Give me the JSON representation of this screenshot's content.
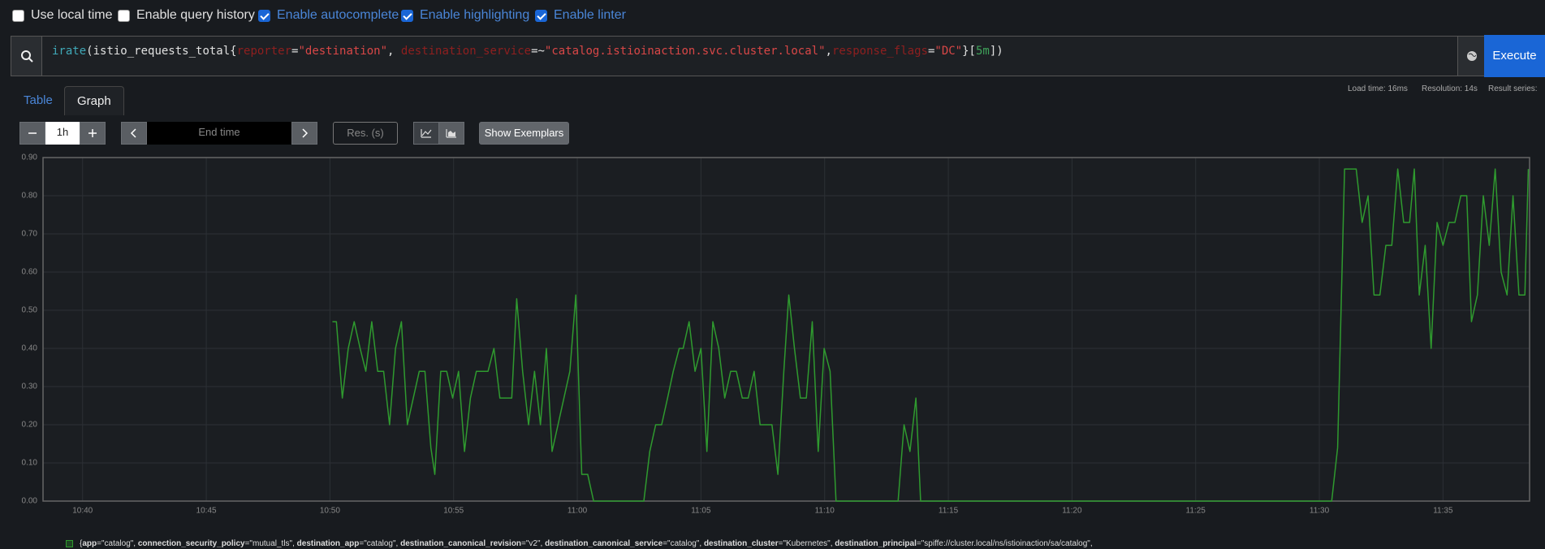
{
  "settings": [
    {
      "label": "Use local time",
      "checked": false
    },
    {
      "label": "Enable query history",
      "checked": false
    },
    {
      "label": "Enable autocomplete",
      "checked": true
    },
    {
      "label": "Enable highlighting",
      "checked": true
    },
    {
      "label": "Enable linter",
      "checked": true
    }
  ],
  "query": {
    "tokens": [
      {
        "text": "irate",
        "kind": "fn"
      },
      {
        "text": "(istio_requests_total{",
        "kind": "plain"
      },
      {
        "text": "reporter",
        "kind": "label"
      },
      {
        "text": "=",
        "kind": "plain"
      },
      {
        "text": "\"destination\"",
        "kind": "string"
      },
      {
        "text": ", ",
        "kind": "plain"
      },
      {
        "text": "destination_service",
        "kind": "label"
      },
      {
        "text": "=~",
        "kind": "plain"
      },
      {
        "text": "\"catalog.istioinaction.svc.cluster.local\"",
        "kind": "string"
      },
      {
        "text": ",",
        "kind": "plain"
      },
      {
        "text": "response_flags",
        "kind": "label"
      },
      {
        "text": "=",
        "kind": "plain"
      },
      {
        "text": "\"DC\"",
        "kind": "string"
      },
      {
        "text": "}[",
        "kind": "plain"
      },
      {
        "text": "5m",
        "kind": "duration"
      },
      {
        "text": "])",
        "kind": "plain"
      }
    ],
    "execute_button": "Execute"
  },
  "tabs": [
    {
      "label": "Table",
      "active": false
    },
    {
      "label": "Graph",
      "active": true
    }
  ],
  "stats": [
    "Load time: 16ms",
    "Resolution: 14s",
    "Result series:"
  ],
  "controls": {
    "range": "1h",
    "end_time_placeholder": "End time",
    "resolution_placeholder": "Res. (s)",
    "exemplars_button": "Show Exemplars"
  },
  "chart_data": {
    "type": "line",
    "grid": true,
    "xlim": [
      638.4,
      698.5
    ],
    "ylim": [
      0,
      0.9
    ],
    "xticks": [
      {
        "value": 640,
        "label": "10:40"
      },
      {
        "value": 645,
        "label": "10:45"
      },
      {
        "value": 650,
        "label": "10:50"
      },
      {
        "value": 655,
        "label": "10:55"
      },
      {
        "value": 660,
        "label": "11:00"
      },
      {
        "value": 665,
        "label": "11:05"
      },
      {
        "value": 670,
        "label": "11:10"
      },
      {
        "value": 675,
        "label": "11:15"
      },
      {
        "value": 680,
        "label": "11:20"
      },
      {
        "value": 685,
        "label": "11:25"
      },
      {
        "value": 690,
        "label": "11:30"
      },
      {
        "value": 695,
        "label": "11:35"
      }
    ],
    "yticks": [
      {
        "value": 0,
        "label": "0.00"
      },
      {
        "value": 0.1,
        "label": "0.10"
      },
      {
        "value": 0.2,
        "label": "0.20"
      },
      {
        "value": 0.3,
        "label": "0.30"
      },
      {
        "value": 0.4,
        "label": "0.40"
      },
      {
        "value": 0.5,
        "label": "0.50"
      },
      {
        "value": 0.6,
        "label": "0.60"
      },
      {
        "value": 0.7,
        "label": "0.70"
      },
      {
        "value": 0.8,
        "label": "0.80"
      },
      {
        "value": 0.9,
        "label": "0.90"
      }
    ],
    "series": [
      {
        "color": "#2f9a2f",
        "x": [
          650.1,
          650.26,
          650.5,
          650.74,
          650.98,
          651.22,
          651.45,
          651.69,
          651.93,
          652.17,
          652.41,
          652.65,
          652.89,
          653.13,
          653.37,
          653.61,
          653.84,
          654.08,
          654.24,
          654.48,
          654.72,
          654.96,
          655.2,
          655.44,
          655.68,
          655.92,
          656.16,
          656.39,
          656.63,
          656.87,
          657.11,
          657.35,
          657.55,
          657.79,
          658.03,
          658.27,
          658.51,
          658.75,
          658.98,
          659.22,
          659.46,
          659.7,
          659.94,
          660.18,
          660.42,
          660.66,
          662.69,
          662.93,
          663.17,
          663.41,
          663.65,
          663.88,
          664.12,
          664.28,
          664.52,
          664.76,
          665.0,
          665.24,
          665.48,
          665.72,
          665.96,
          666.2,
          666.43,
          666.67,
          666.91,
          667.15,
          667.39,
          667.63,
          667.87,
          668.11,
          668.35,
          668.55,
          668.78,
          669.02,
          669.26,
          669.5,
          669.74,
          669.98,
          670.22,
          670.46,
          672.97,
          673.21,
          673.45,
          673.69,
          673.88,
          690.5,
          690.74,
          691.02,
          691.25,
          691.49,
          691.73,
          691.97,
          692.21,
          692.45,
          692.69,
          692.93,
          693.17,
          693.41,
          693.65,
          693.84,
          694.04,
          694.28,
          694.52,
          694.76,
          695.0,
          695.24,
          695.48,
          695.72,
          695.96,
          696.15,
          696.39,
          696.63,
          696.87,
          697.11,
          697.35,
          697.59,
          697.83,
          698.07,
          698.31,
          698.45
        ],
        "values": [
          0.47,
          0.47,
          0.27,
          0.4,
          0.47,
          0.4,
          0.34,
          0.47,
          0.34,
          0.34,
          0.2,
          0.4,
          0.47,
          0.2,
          0.27,
          0.34,
          0.34,
          0.14,
          0.07,
          0.34,
          0.34,
          0.27,
          0.34,
          0.13,
          0.27,
          0.34,
          0.34,
          0.34,
          0.4,
          0.27,
          0.27,
          0.27,
          0.53,
          0.34,
          0.2,
          0.34,
          0.2,
          0.4,
          0.13,
          0.2,
          0.27,
          0.34,
          0.54,
          0.07,
          0.07,
          0,
          0,
          0.13,
          0.2,
          0.2,
          0.27,
          0.34,
          0.4,
          0.4,
          0.47,
          0.34,
          0.4,
          0.13,
          0.47,
          0.4,
          0.27,
          0.34,
          0.34,
          0.27,
          0.27,
          0.34,
          0.2,
          0.2,
          0.2,
          0.07,
          0.34,
          0.54,
          0.4,
          0.27,
          0.27,
          0.47,
          0.13,
          0.4,
          0.34,
          0,
          0,
          0.2,
          0.13,
          0.27,
          0,
          0,
          0.14,
          0.87,
          0.87,
          0.87,
          0.73,
          0.8,
          0.54,
          0.54,
          0.67,
          0.67,
          0.87,
          0.73,
          0.73,
          0.87,
          0.54,
          0.67,
          0.4,
          0.73,
          0.67,
          0.73,
          0.73,
          0.8,
          0.8,
          0.47,
          0.54,
          0.8,
          0.67,
          0.87,
          0.6,
          0.54,
          0.8,
          0.54,
          0.54,
          0.87
        ]
      }
    ],
    "legend": [
      {
        "text": "{",
        "bold": false
      },
      {
        "text": "app",
        "bold": true
      },
      {
        "text": "=\"catalog\", ",
        "bold": false
      },
      {
        "text": "connection_security_policy",
        "bold": true
      },
      {
        "text": "=\"mutual_tls\", ",
        "bold": false
      },
      {
        "text": "destination_app",
        "bold": true
      },
      {
        "text": "=\"catalog\", ",
        "bold": false
      },
      {
        "text": "destination_canonical_revision",
        "bold": true
      },
      {
        "text": "=\"v2\", ",
        "bold": false
      },
      {
        "text": "destination_canonical_service",
        "bold": true
      },
      {
        "text": "=\"catalog\", ",
        "bold": false
      },
      {
        "text": "destination_cluster",
        "bold": true
      },
      {
        "text": "=\"Kubernetes\", ",
        "bold": false
      },
      {
        "text": "destination_principal",
        "bold": true
      },
      {
        "text": "=\"spiffe://cluster.local/ns/istioinaction/sa/catalog\",",
        "bold": false
      }
    ]
  }
}
